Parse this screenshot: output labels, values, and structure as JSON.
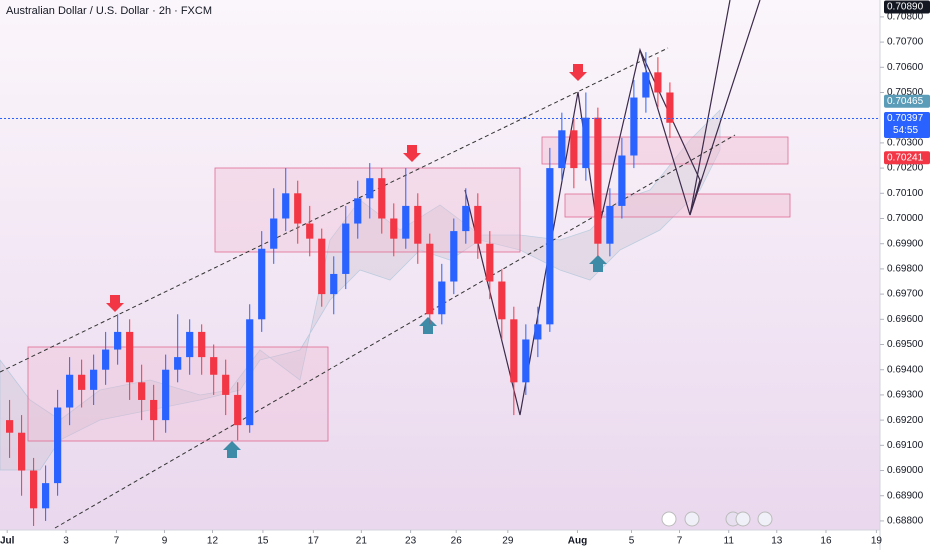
{
  "chart_data": {
    "type": "candlestick",
    "title": "Australian Dollar / U.S. Dollar · 2h · FXCM",
    "x": [
      0,
      1,
      2,
      3,
      4,
      5,
      6,
      7,
      8,
      9,
      10,
      11,
      12,
      13,
      14,
      15,
      16,
      17,
      18,
      19,
      20,
      21,
      22,
      23,
      24,
      25,
      26,
      27,
      28,
      29,
      30,
      31,
      32,
      33,
      34,
      35,
      36,
      37,
      38,
      39,
      40,
      41,
      42,
      43,
      44,
      45,
      46,
      47,
      48,
      49,
      50,
      51,
      52,
      53,
      54,
      55
    ],
    "open": [
      0.692,
      0.6915,
      0.69,
      0.6885,
      0.6895,
      0.6925,
      0.6938,
      0.6932,
      0.694,
      0.6948,
      0.6955,
      0.6935,
      0.6928,
      0.692,
      0.694,
      0.6945,
      0.6955,
      0.6945,
      0.6938,
      0.693,
      0.6918,
      0.696,
      0.6988,
      0.7,
      0.701,
      0.6998,
      0.6992,
      0.697,
      0.6978,
      0.6998,
      0.7008,
      0.7016,
      0.7,
      0.6992,
      0.7005,
      0.699,
      0.6962,
      0.6975,
      0.6995,
      0.7005,
      0.699,
      0.6975,
      0.696,
      0.6935,
      0.6952,
      0.6958,
      0.702,
      0.7035,
      0.702,
      0.704,
      0.699,
      0.7005,
      0.7025,
      0.7048,
      0.7058,
      0.705
    ],
    "high": [
      0.6928,
      0.6922,
      0.6905,
      0.6902,
      0.6932,
      0.6945,
      0.6944,
      0.6946,
      0.6955,
      0.6962,
      0.696,
      0.6942,
      0.6934,
      0.6946,
      0.6962,
      0.696,
      0.6958,
      0.695,
      0.6944,
      0.6935,
      0.6966,
      0.6995,
      0.7012,
      0.702,
      0.7015,
      0.7005,
      0.6996,
      0.6985,
      0.7005,
      0.7015,
      0.7022,
      0.702,
      0.7006,
      0.702,
      0.701,
      0.6994,
      0.6982,
      0.7,
      0.7012,
      0.701,
      0.6995,
      0.698,
      0.6965,
      0.6958,
      0.6965,
      0.7028,
      0.7042,
      0.704,
      0.705,
      0.7044,
      0.7012,
      0.7032,
      0.7055,
      0.7066,
      0.7064,
      0.7054
    ],
    "low": [
      0.6905,
      0.689,
      0.6878,
      0.688,
      0.689,
      0.6918,
      0.6925,
      0.6926,
      0.6934,
      0.6942,
      0.6928,
      0.692,
      0.6912,
      0.6915,
      0.6935,
      0.6938,
      0.6938,
      0.693,
      0.6922,
      0.6912,
      0.6915,
      0.6955,
      0.6982,
      0.6995,
      0.699,
      0.6985,
      0.6965,
      0.6962,
      0.6972,
      0.6992,
      0.7,
      0.6994,
      0.6985,
      0.6988,
      0.6982,
      0.6958,
      0.6958,
      0.697,
      0.699,
      0.6984,
      0.6968,
      0.6952,
      0.6922,
      0.693,
      0.6945,
      0.6955,
      0.7015,
      0.7012,
      0.7015,
      0.6985,
      0.6985,
      0.7,
      0.702,
      0.7042,
      0.7044,
      0.7032
    ],
    "close": [
      0.6915,
      0.69,
      0.6885,
      0.6895,
      0.6925,
      0.6938,
      0.6932,
      0.694,
      0.6948,
      0.6955,
      0.6935,
      0.6928,
      0.692,
      0.694,
      0.6945,
      0.6955,
      0.6945,
      0.6938,
      0.693,
      0.6918,
      0.696,
      0.6988,
      0.7,
      0.701,
      0.6998,
      0.6992,
      0.697,
      0.6978,
      0.6998,
      0.7008,
      0.7016,
      0.7,
      0.6992,
      0.7005,
      0.699,
      0.6962,
      0.6975,
      0.6995,
      0.7005,
      0.699,
      0.6975,
      0.696,
      0.6935,
      0.6952,
      0.6958,
      0.702,
      0.7035,
      0.702,
      0.704,
      0.699,
      0.7005,
      0.7025,
      0.7048,
      0.7058,
      0.705,
      0.7038
    ],
    "up_color": "#2962ff",
    "down_color": "#f23645",
    "xlim": [
      -0.8,
      72.5
    ],
    "xticks": [
      {
        "value": -0.2,
        "label": "Jul"
      },
      {
        "value": 4.7,
        "label": "3"
      },
      {
        "value": 8.9,
        "label": "7"
      },
      {
        "value": 12.9,
        "label": "9"
      },
      {
        "value": 16.9,
        "label": "12"
      },
      {
        "value": 21.1,
        "label": "15"
      },
      {
        "value": 25.3,
        "label": "17"
      },
      {
        "value": 29.3,
        "label": "21"
      },
      {
        "value": 33.4,
        "label": "23"
      },
      {
        "value": 37.2,
        "label": "26"
      },
      {
        "value": 41.5,
        "label": "29"
      },
      {
        "value": 47.3,
        "label": "Aug"
      },
      {
        "value": 51.8,
        "label": "5"
      },
      {
        "value": 55.8,
        "label": "7"
      },
      {
        "value": 59.9,
        "label": "11"
      },
      {
        "value": 63.9,
        "label": "13"
      },
      {
        "value": 68,
        "label": "16"
      },
      {
        "value": 72.2,
        "label": "19"
      }
    ],
    "ylim": [
      0.68764,
      0.70867
    ],
    "yticks": [
      {
        "value": 0.688,
        "label": "0.68800"
      },
      {
        "value": 0.689,
        "label": "0.68900"
      },
      {
        "value": 0.69,
        "label": "0.69000"
      },
      {
        "value": 0.691,
        "label": "0.69100"
      },
      {
        "value": 0.692,
        "label": "0.69200"
      },
      {
        "value": 0.693,
        "label": "0.69300"
      },
      {
        "value": 0.694,
        "label": "0.69400"
      },
      {
        "value": 0.695,
        "label": "0.69500"
      },
      {
        "value": 0.696,
        "label": "0.69600"
      },
      {
        "value": 0.697,
        "label": "0.69700"
      },
      {
        "value": 0.698,
        "label": "0.69800"
      },
      {
        "value": 0.699,
        "label": "0.69900"
      },
      {
        "value": 0.7,
        "label": "0.70000"
      },
      {
        "value": 0.701,
        "label": "0.70100"
      },
      {
        "value": 0.702,
        "label": "0.70200"
      },
      {
        "value": 0.703,
        "label": "0.70300"
      },
      {
        "value": 0.705,
        "label": "0.70500"
      },
      {
        "value": 0.706,
        "label": "0.70600"
      },
      {
        "value": 0.707,
        "label": "0.70700"
      },
      {
        "value": 0.708,
        "label": "0.70800"
      }
    ],
    "price_labels": [
      {
        "value": 0.7089,
        "label": "0.70890",
        "color": "#131722"
      },
      {
        "value": 0.70465,
        "label": "0.70465",
        "color": "#5b9cb8"
      },
      {
        "value": 0.70397,
        "label": "0.70397",
        "countdown": "54:55",
        "color": "#2962ff"
      },
      {
        "value": 0.70241,
        "label": "0.70241",
        "color": "#f23645"
      }
    ]
  }
}
